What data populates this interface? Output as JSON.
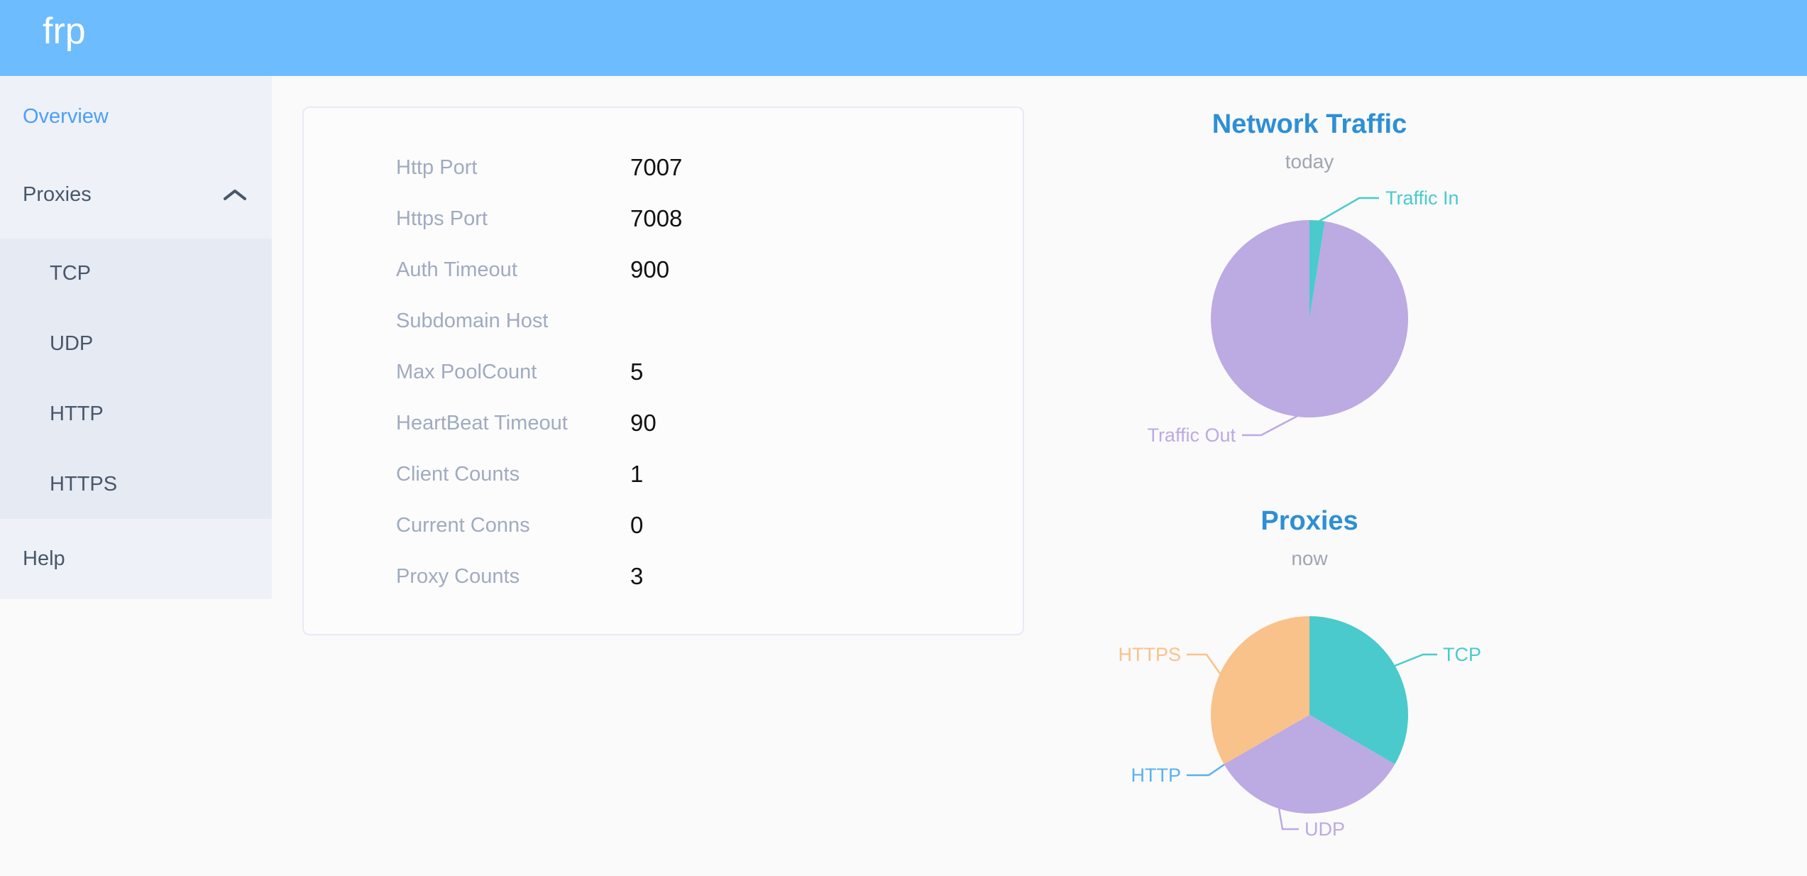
{
  "theme": {
    "header_bg": "#6dbcfe",
    "sidebar_bg": "#eef1f7",
    "submenu_bg": "#e6eaf3",
    "menu_text": "#48576a",
    "active_link_blue": "#4ba0f7",
    "chart_title_blue": "#2e8fd4",
    "subtitle_gray": "#9ea6b2",
    "card_border": "#e7eaf6",
    "label_gray": "#a0abbf",
    "value_dark": "#111111"
  },
  "header": {
    "logo": "frp"
  },
  "sidebar": {
    "overview": {
      "label": "Overview"
    },
    "proxies": {
      "label": "Proxies",
      "state": "expanded",
      "chevron_icon": "chevron-up-icon"
    },
    "submenu": [
      {
        "label": "TCP"
      },
      {
        "label": "UDP"
      },
      {
        "label": "HTTP"
      },
      {
        "label": "HTTPS"
      }
    ],
    "help": {
      "label": "Help"
    }
  },
  "server_info": {
    "rows": [
      {
        "label": "Http Port",
        "value": "7007"
      },
      {
        "label": "Https Port",
        "value": "7008"
      },
      {
        "label": "Auth Timeout",
        "value": "900"
      },
      {
        "label": "Subdomain Host",
        "value": ""
      },
      {
        "label": "Max PoolCount",
        "value": "5"
      },
      {
        "label": "HeartBeat Timeout",
        "value": "90"
      },
      {
        "label": "Client Counts",
        "value": "1"
      },
      {
        "label": "Current Conns",
        "value": "0"
      },
      {
        "label": "Proxy Counts",
        "value": "3"
      }
    ]
  },
  "charts": [
    {
      "title": "Network Traffic",
      "subtitle": "today",
      "slices": [
        {
          "name": "Traffic In",
          "value": 2.5,
          "color": "#4acacd"
        },
        {
          "name": "Traffic Out",
          "value": 97.5,
          "color": "#bcaae3"
        }
      ]
    },
    {
      "title": "Proxies",
      "subtitle": "now",
      "slices": [
        {
          "name": "TCP",
          "value": 1,
          "color": "#4acacd"
        },
        {
          "name": "UDP",
          "value": 1,
          "color": "#bcaae3"
        },
        {
          "name": "HTTP",
          "value": 0,
          "color": "#5ab1ef"
        },
        {
          "name": "HTTPS",
          "value": 1,
          "color": "#f9c28a"
        }
      ]
    }
  ],
  "chart_data": [
    {
      "type": "pie",
      "title": "Network Traffic",
      "subtitle": "today",
      "labels": [
        "Traffic In",
        "Traffic Out"
      ],
      "values_percent": [
        2.5,
        97.5
      ],
      "colors": [
        "#4acacd",
        "#bcaae3"
      ],
      "legend": "leader-line labels, no legend box"
    },
    {
      "type": "pie",
      "title": "Proxies",
      "subtitle": "now",
      "labels": [
        "TCP",
        "UDP",
        "HTTP",
        "HTTPS"
      ],
      "values": [
        1,
        1,
        0,
        1
      ],
      "colors": [
        "#4acacd",
        "#bcaae3",
        "#5ab1ef",
        "#f9c28a"
      ],
      "legend": "leader-line labels, no legend box; HTTP slice has zero size"
    }
  ]
}
